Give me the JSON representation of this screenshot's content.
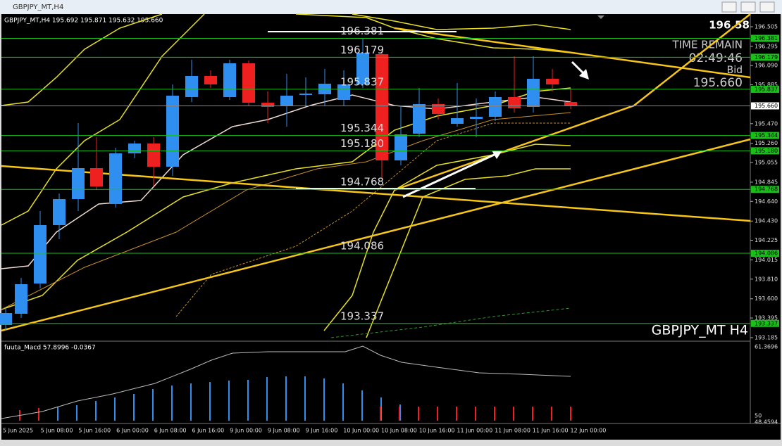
{
  "window": {
    "title": "GBPJPY_MT,H4"
  },
  "chart": {
    "info": "GBPJPY_MT,H4  195.692 195.871 195.632 195.660",
    "price_top": "196.58",
    "time_remain_label": "TIME REMAIN",
    "time_remain": "02:49:46",
    "bid_label": "Bid",
    "bid": "195.660",
    "symbol": "GBPJPY_MT  H4",
    "current_price": "195.660",
    "price_axis": [
      "196.505",
      "196.295",
      "196.090",
      "195.885",
      "195.470",
      "195.260",
      "195.055",
      "194.845",
      "194.640",
      "194.430",
      "194.225",
      "194.015",
      "193.810",
      "193.600",
      "193.395",
      "193.185"
    ],
    "levels": [
      "196.381",
      "196.179",
      "195.837",
      "195.344",
      "195.180",
      "194.768",
      "194.086",
      "193.337"
    ]
  },
  "macd": {
    "label": "fuuta_Macd 57.8996  -0.0367",
    "axis": [
      "61.3696",
      "50",
      "48.4594"
    ]
  },
  "time_axis": [
    "5 Jun 2025",
    "5 Jun 08:00",
    "5 Jun 16:00",
    "6 Jun 00:00",
    "6 Jun 08:00",
    "6 Jun 16:00",
    "9 Jun 00:00",
    "9 Jun 08:00",
    "9 Jun 16:00",
    "10 Jun 00:00",
    "10 Jun 08:00",
    "10 Jun 16:00",
    "11 Jun 00:00",
    "11 Jun 08:00",
    "11 Jun 16:00",
    "12 Jun 00:00"
  ]
}
